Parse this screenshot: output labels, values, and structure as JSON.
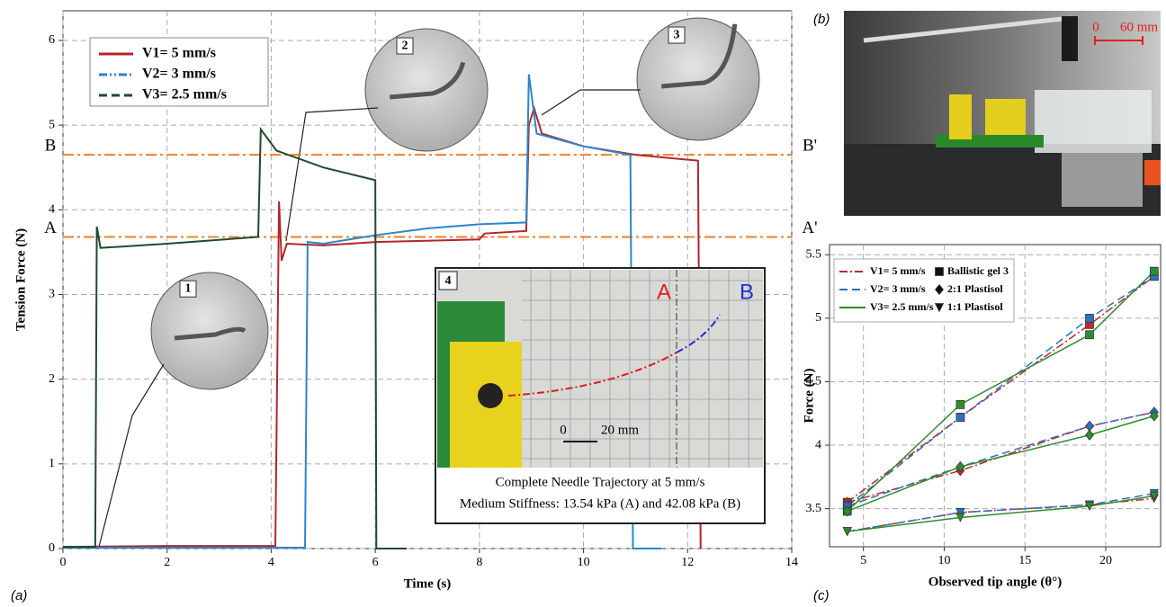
{
  "chart_data": [
    {
      "type": "line",
      "panel_label": "(a)",
      "x_label": "Time (s)",
      "y_label": "Tension Force (N)",
      "xlim": [
        0,
        14
      ],
      "xticks": [
        0,
        2,
        4,
        6,
        8,
        10,
        12,
        14
      ],
      "ylim": [
        0,
        6.35
      ],
      "yticks": [
        0,
        1,
        2,
        3,
        4,
        5,
        6
      ],
      "grid": true,
      "legend": "upper left",
      "series": [
        {
          "name": "V1= 5 mm/s",
          "color": "#b3252b",
          "dash": "solid",
          "x": [
            0,
            2,
            4.08,
            4.15,
            4.2,
            4.3,
            5,
            6,
            8,
            8.1,
            8.9,
            8.95,
            9.05,
            9.2,
            10,
            11,
            12.2,
            12.25
          ],
          "values": [
            0.02,
            0.03,
            0.03,
            4.1,
            3.4,
            3.6,
            3.58,
            3.62,
            3.65,
            3.72,
            3.75,
            5.0,
            5.2,
            4.9,
            4.75,
            4.65,
            4.58,
            0
          ]
        },
        {
          "name": "V2= 3 mm/s",
          "color": "#2b86c9",
          "dash": "dashdotdot",
          "x": [
            0,
            4.65,
            4.7,
            5,
            6,
            7,
            8,
            8.9,
            8.95,
            9.1,
            10,
            10.9,
            10.95,
            11.5
          ],
          "values": [
            0.01,
            0.01,
            3.62,
            3.6,
            3.7,
            3.78,
            3.83,
            3.85,
            5.6,
            4.9,
            4.75,
            4.65,
            0,
            0
          ]
        },
        {
          "name": "V3= 2.5 mm/s",
          "color": "#1e4a2c",
          "dash": "dashed",
          "x": [
            0,
            0.62,
            0.65,
            0.72,
            2,
            3.75,
            3.8,
            4.1,
            5,
            6,
            6.02,
            6.6
          ],
          "values": [
            0.02,
            0.02,
            3.8,
            3.55,
            3.6,
            3.68,
            4.95,
            4.7,
            4.5,
            4.35,
            0,
            0
          ]
        }
      ],
      "reference_lines": [
        {
          "value": 3.68,
          "label": "A",
          "label_right": "A'",
          "color": "#f07f2e"
        },
        {
          "value": 4.65,
          "label": "B",
          "label_right": "B'",
          "color": "#f07f2e"
        }
      ],
      "callouts": [
        "1",
        "2",
        "3"
      ],
      "inset": {
        "number": "4",
        "label_a": "A",
        "label_b": "B",
        "scale_start": "0",
        "scale_label": "20 mm",
        "caption": [
          "Complete Needle Trajectory at 5 mm/s",
          "Medium Stiffness: 13.54 kPa (A) and 42.08 kPa (B)"
        ]
      }
    },
    {
      "type": "line",
      "panel_label": "(c)",
      "x_label": "Observed tip angle (θ°)",
      "y_label": "Force (N)",
      "xlim": [
        2.9,
        23.4
      ],
      "xticks": [
        5,
        10,
        15,
        20
      ],
      "ylim": [
        3.2,
        5.58
      ],
      "yticks": [
        3.5,
        4,
        4.5,
        5,
        5.5
      ],
      "grid": true,
      "legend": "upper left",
      "x": [
        4,
        11,
        19,
        23
      ],
      "materials": [
        {
          "name": "Ballistic gel 3",
          "marker": "square"
        },
        {
          "name": "2:1 Plastisol",
          "marker": "diamond"
        },
        {
          "name": "1:1 Plastisol",
          "marker": "triangle"
        }
      ],
      "series": [
        {
          "name": "V1= 5 mm/s",
          "color": "#c0272d",
          "dash": "dashdot",
          "values": [
            [
              3.55,
              4.22,
              4.95,
              5.33
            ],
            [
              3.55,
              3.8,
              4.15,
              4.26
            ],
            [
              3.32,
              3.47,
              3.53,
              3.58
            ]
          ]
        },
        {
          "name": "V2= 3 mm/s",
          "color": "#2f6fc0",
          "dash": "dashed",
          "values": [
            [
              3.52,
              4.22,
              5.0,
              5.33
            ],
            [
              3.52,
              3.83,
              4.15,
              4.26
            ],
            [
              3.32,
              3.47,
              3.53,
              3.62
            ]
          ]
        },
        {
          "name": "V3= 2.5 mm/s",
          "color": "#2e8b2e",
          "dash": "solid",
          "values": [
            [
              3.48,
              4.32,
              4.87,
              5.37
            ],
            [
              3.48,
              3.83,
              4.08,
              4.23
            ],
            [
              3.32,
              3.43,
              3.52,
              3.6
            ]
          ]
        }
      ]
    }
  ],
  "photo": {
    "panel_label": "(b)",
    "scale_start": "0",
    "scale_label": "60 mm"
  }
}
